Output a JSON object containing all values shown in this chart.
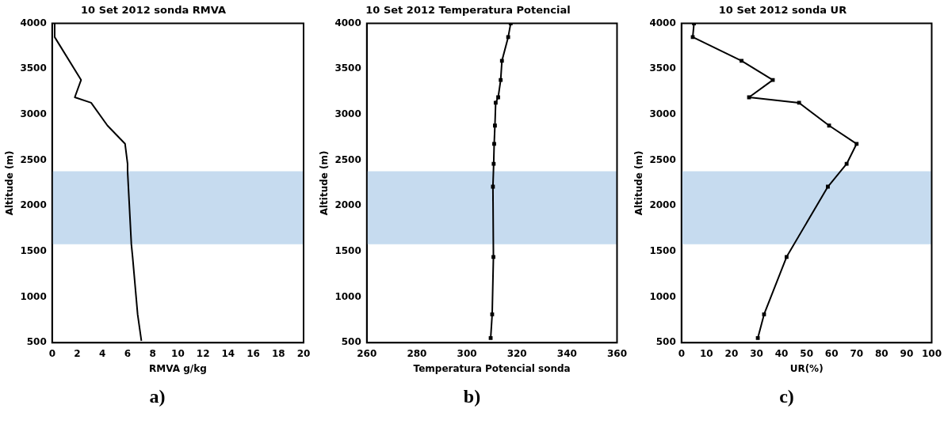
{
  "chart_data": [
    {
      "type": "line",
      "title": "10 Set 2012 sonda RMVA",
      "xlabel": "RMVA g/kg",
      "ylabel": "Altitude (m)",
      "annotations": [
        "a)"
      ],
      "series": [
        {
          "color": "#000000",
          "x": [
            0.2,
            0.2,
            2.3,
            1.8,
            3.1,
            4.4,
            5.8,
            6.0,
            6.0,
            6.3,
            6.4,
            6.8,
            7.1
          ],
          "values": [
            4000,
            3850,
            3380,
            3190,
            3130,
            2880,
            2680,
            2460,
            2380,
            1580,
            1440,
            810,
            520
          ]
        }
      ],
      "xlim": [
        0,
        20
      ],
      "xticks": [
        0,
        2,
        4,
        6,
        8,
        10,
        12,
        14,
        16,
        18,
        20
      ],
      "ylim": [
        500,
        4000
      ],
      "yticks": [
        500,
        1000,
        1500,
        2000,
        2500,
        3000,
        3500,
        4000
      ],
      "bands": [
        {
          "axis": "y",
          "from": 1580,
          "to": 2380,
          "color": "#c6dbef"
        }
      ],
      "grid": false,
      "legend": false,
      "marker": "none",
      "line_style": "solid"
    },
    {
      "type": "line",
      "title": "10 Set 2012 Temperatura Potencial",
      "xlabel": "Temperatura Potencial sonda",
      "ylabel": "Altitude (m)",
      "annotations": [
        "b)"
      ],
      "series": [
        {
          "color": "#000000",
          "x": [
            317.5,
            316.5,
            314,
            313.5,
            312.5,
            311.5,
            311.2,
            310.9,
            310.7,
            310.4,
            310.6,
            310.1,
            309.5
          ],
          "values": [
            4000,
            3850,
            3590,
            3380,
            3190,
            3130,
            2880,
            2680,
            2460,
            2210,
            1440,
            810,
            550
          ]
        }
      ],
      "xlim": [
        260,
        360
      ],
      "xticks": [
        260,
        280,
        300,
        320,
        340,
        360
      ],
      "ylim": [
        500,
        4000
      ],
      "yticks": [
        500,
        1000,
        1500,
        2000,
        2500,
        3000,
        3500,
        4000
      ],
      "bands": [
        {
          "axis": "y",
          "from": 1580,
          "to": 2380,
          "color": "#c6dbef"
        }
      ],
      "grid": false,
      "legend": false,
      "marker": "square",
      "line_style": "solid"
    },
    {
      "type": "line",
      "title": "10 Set 2012 sonda UR",
      "xlabel": "UR(%)",
      "ylabel": "Altitude (m)",
      "annotations": [
        "c)"
      ],
      "series": [
        {
          "color": "#000000",
          "x": [
            5,
            4.5,
            24,
            36.5,
            27,
            47,
            59,
            70,
            66,
            58.5,
            42,
            33,
            30.5
          ],
          "values": [
            4000,
            3850,
            3590,
            3380,
            3190,
            3130,
            2880,
            2680,
            2460,
            2210,
            1440,
            810,
            550
          ]
        }
      ],
      "xlim": [
        0,
        100
      ],
      "xticks": [
        0,
        10,
        20,
        30,
        40,
        50,
        60,
        70,
        80,
        90,
        100
      ],
      "ylim": [
        500,
        4000
      ],
      "yticks": [
        500,
        1000,
        1500,
        2000,
        2500,
        3000,
        3500,
        4000
      ],
      "bands": [
        {
          "axis": "y",
          "from": 1580,
          "to": 2380,
          "color": "#c6dbef"
        }
      ],
      "grid": false,
      "legend": false,
      "marker": "square",
      "line_style": "solid"
    }
  ]
}
